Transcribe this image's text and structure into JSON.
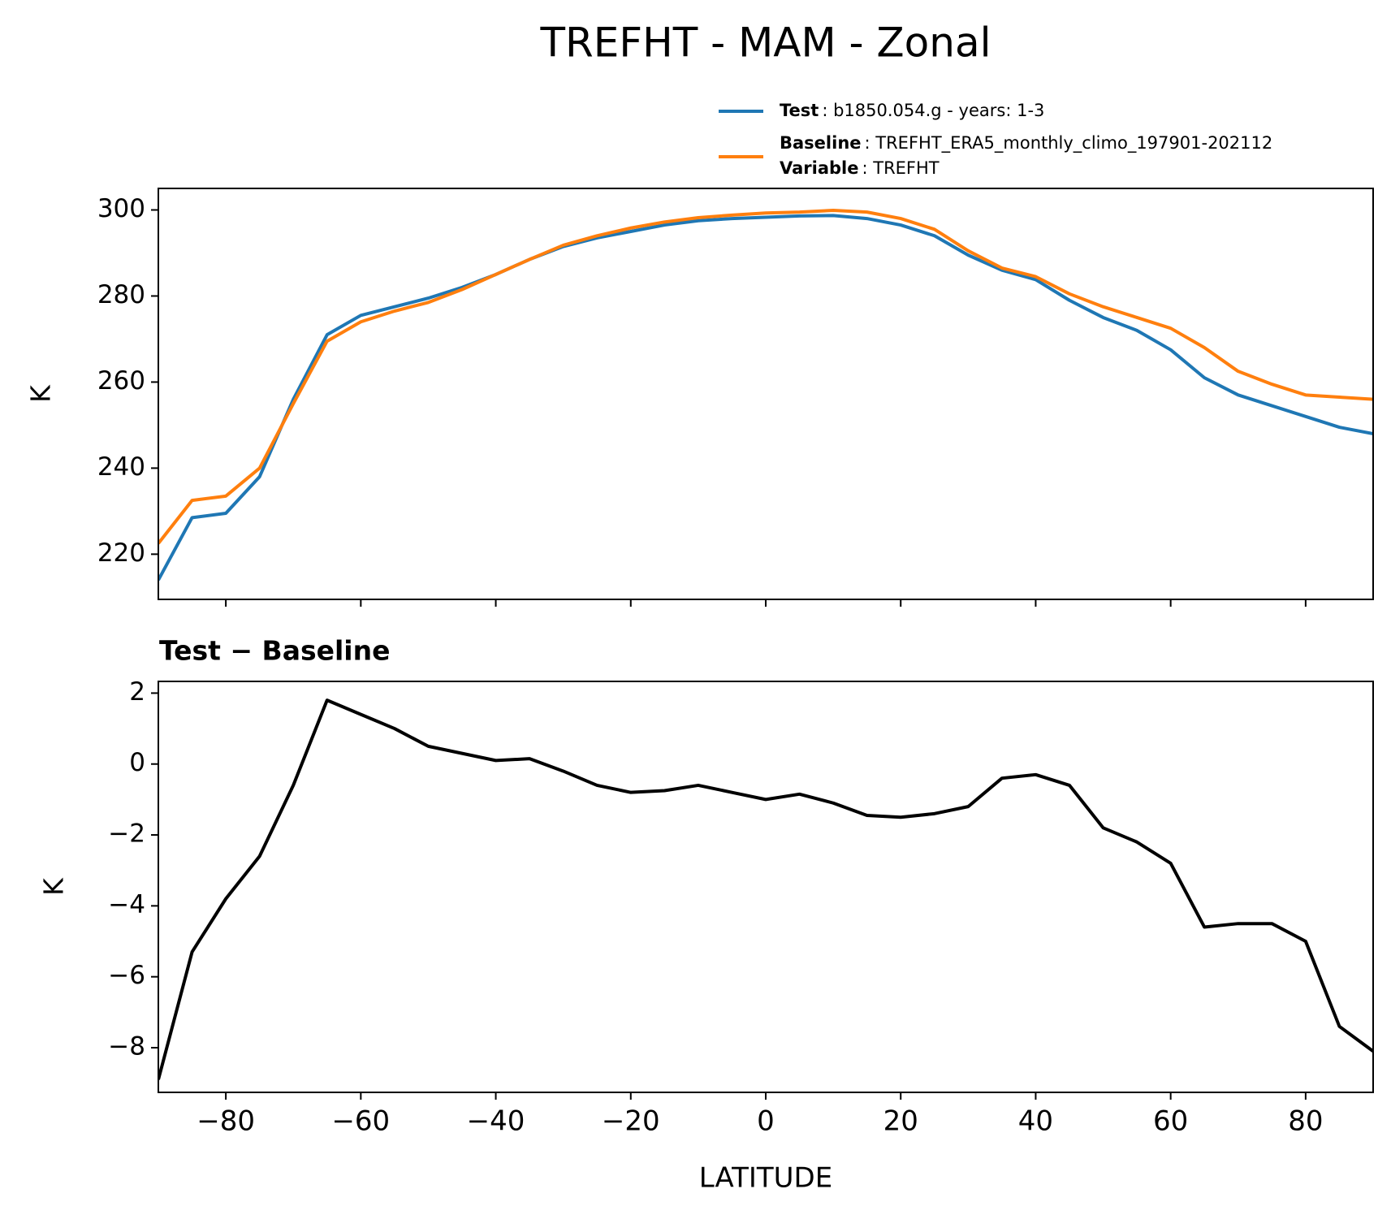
{
  "chart_data": [
    {
      "type": "line",
      "title": "TREFHT - MAM - Zonal",
      "ylabel": "K",
      "x": [
        -90,
        -85,
        -80,
        -75,
        -70,
        -65,
        -60,
        -55,
        -50,
        -45,
        -40,
        -35,
        -30,
        -25,
        -20,
        -15,
        -10,
        -5,
        0,
        5,
        10,
        15,
        20,
        25,
        30,
        35,
        40,
        45,
        50,
        55,
        60,
        65,
        70,
        75,
        80,
        85,
        90
      ],
      "series": [
        {
          "name": "Test",
          "label": ": b1850.054.g - years: 1-3",
          "color": "#1f77b4",
          "values": [
            214,
            228.5,
            229.5,
            238,
            256,
            271,
            275.5,
            277.5,
            279.5,
            282,
            285,
            288.5,
            291.5,
            293.5,
            295,
            296.5,
            297.5,
            298,
            298.3,
            298.6,
            298.7,
            298,
            296.5,
            294,
            289.5,
            286,
            283.8,
            279,
            275,
            272,
            267.5,
            261,
            257,
            254.5,
            252,
            249.5,
            248
          ]
        },
        {
          "name": "Baseline",
          "label": ": TREFHT_ERA5_monthly_climo_197901-202112",
          "extra_name": "Variable",
          "extra_label": ": TREFHT",
          "color": "#ff7f0e",
          "values": [
            222.5,
            232.5,
            233.5,
            240,
            255,
            269.5,
            274,
            276.5,
            278.5,
            281.5,
            285,
            288.5,
            291.8,
            294,
            295.8,
            297.2,
            298.2,
            298.8,
            299.3,
            299.5,
            299.9,
            299.5,
            298,
            295.5,
            290.5,
            286.5,
            284.5,
            280.5,
            277.5,
            275,
            272.5,
            268,
            262.5,
            259.5,
            257,
            256.5,
            256
          ]
        }
      ],
      "xlim": [
        -90,
        90
      ],
      "ylim": [
        209.5,
        305
      ],
      "yticks": [
        220,
        240,
        260,
        280,
        300
      ]
    },
    {
      "type": "line",
      "title": "Test − Baseline",
      "xlabel": "LATITUDE",
      "ylabel": "K",
      "x": [
        -90,
        -85,
        -80,
        -75,
        -70,
        -65,
        -60,
        -55,
        -50,
        -45,
        -40,
        -35,
        -30,
        -25,
        -20,
        -15,
        -10,
        -5,
        0,
        5,
        10,
        15,
        20,
        25,
        30,
        35,
        40,
        45,
        50,
        55,
        60,
        65,
        70,
        75,
        80,
        85,
        90
      ],
      "series": [
        {
          "color": "#000000",
          "values": [
            -8.9,
            -5.3,
            -3.8,
            -2.6,
            -0.6,
            1.8,
            1.4,
            1.0,
            0.5,
            0.3,
            0.1,
            0.15,
            -0.2,
            -0.6,
            -0.8,
            -0.75,
            -0.6,
            -0.8,
            -1.0,
            -0.85,
            -1.1,
            -1.45,
            -1.5,
            -1.4,
            -1.2,
            -0.4,
            -0.3,
            -0.6,
            -1.8,
            -2.2,
            -2.8,
            -4.6,
            -4.5,
            -4.5,
            -5.0,
            -7.4,
            -8.1
          ]
        }
      ],
      "xlim": [
        -90,
        90
      ],
      "ylim": [
        -9.26,
        2.33
      ],
      "xticks": [
        {
          "value": -80,
          "label": "−80"
        },
        {
          "value": -60,
          "label": "−60"
        },
        {
          "value": -40,
          "label": "−40"
        },
        {
          "value": -20,
          "label": "−20"
        },
        0,
        20,
        40,
        60,
        80
      ],
      "yticks": [
        {
          "value": -8,
          "label": "−8"
        },
        {
          "value": -6,
          "label": "−6"
        },
        {
          "value": -4,
          "label": "−4"
        },
        {
          "value": -2,
          "label": "−2"
        },
        0,
        2
      ]
    }
  ]
}
